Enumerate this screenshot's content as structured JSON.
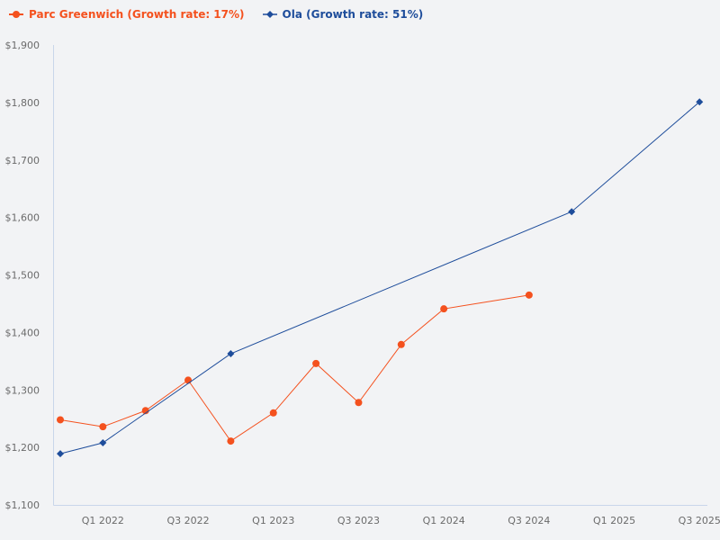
{
  "chart_data": {
    "type": "line",
    "title": "",
    "xlabel": "",
    "ylabel": "",
    "ylim": [
      1100,
      1900
    ],
    "grid": false,
    "legend_position": "top-left",
    "y_ticks": [
      "$1,100",
      "$1,200",
      "$1,300",
      "$1,400",
      "$1,500",
      "$1,600",
      "$1,700",
      "$1,800",
      "$1,900"
    ],
    "x_ticks": [
      "Q1 2022",
      "Q3 2022",
      "Q1 2023",
      "Q3 2023",
      "Q1 2024",
      "Q3 2024",
      "Q1 2025",
      "Q3 2025"
    ],
    "series": [
      {
        "name": "Parc Greenwich (Growth rate: 17%)",
        "color": "#f4511e",
        "marker": "circle",
        "points": [
          {
            "x": "Q4 2021",
            "y": 1248
          },
          {
            "x": "Q1 2022",
            "y": 1236
          },
          {
            "x": "Q2 2022",
            "y": 1264
          },
          {
            "x": "Q3 2022",
            "y": 1317
          },
          {
            "x": "Q4 2022",
            "y": 1211
          },
          {
            "x": "Q1 2023",
            "y": 1260
          },
          {
            "x": "Q2 2023",
            "y": 1346
          },
          {
            "x": "Q3 2023",
            "y": 1278
          },
          {
            "x": "Q4 2023",
            "y": 1379
          },
          {
            "x": "Q1 2024",
            "y": 1441
          },
          {
            "x": "Q3 2024",
            "y": 1465
          }
        ]
      },
      {
        "name": "Ola (Growth rate: 51%)",
        "color": "#1e4d9b",
        "marker": "diamond",
        "points": [
          {
            "x": "Q4 2021",
            "y": 1189
          },
          {
            "x": "Q1 2022",
            "y": 1208
          },
          {
            "x": "Q4 2022",
            "y": 1363
          },
          {
            "x": "Q4 2024",
            "y": 1610
          },
          {
            "x": "Q3 2025",
            "y": 1801
          }
        ]
      }
    ]
  },
  "legend": {
    "items": [
      {
        "label": "Parc Greenwich (Growth rate: 17%)",
        "color": "#f4511e"
      },
      {
        "label": "Ola (Growth rate: 51%)",
        "color": "#1e4d9b"
      }
    ]
  },
  "axis": {
    "y_labels": [
      "$1,900",
      "$1,800",
      "$1,700",
      "$1,600",
      "$1,500",
      "$1,400",
      "$1,300",
      "$1,200",
      "$1,100"
    ],
    "x_labels": [
      "Q1 2022",
      "Q3 2022",
      "Q1 2023",
      "Q3 2023",
      "Q1 2024",
      "Q3 2024",
      "Q1 2025",
      "Q3 2025"
    ]
  }
}
